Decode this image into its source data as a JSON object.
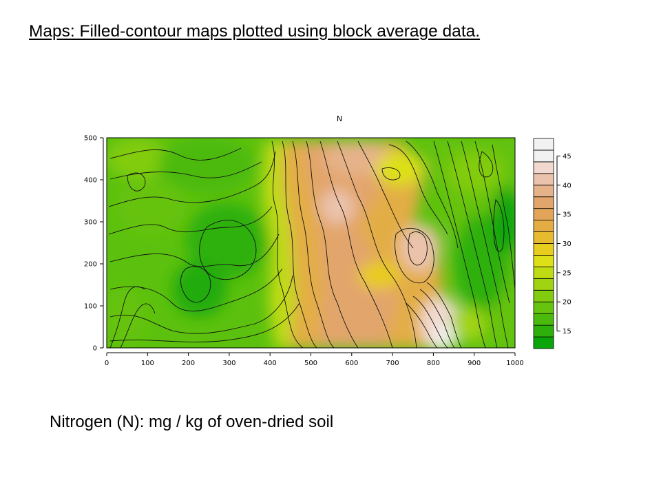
{
  "slide_title": "Maps: Filled-contour maps plotted using block average data.",
  "plot_title": "N",
  "caption": "Nitrogen (N): mg / kg of oven-dried soil",
  "chart_data": {
    "type": "heatmap",
    "title": "N",
    "x_ticks": [
      0,
      100,
      200,
      300,
      400,
      500,
      600,
      700,
      800,
      900,
      1000
    ],
    "y_ticks": [
      0,
      100,
      200,
      300,
      400,
      500
    ],
    "xlim": [
      0,
      1000
    ],
    "ylim": [
      0,
      500
    ],
    "colorbar": {
      "levels": [
        12,
        14,
        16,
        18,
        20,
        22,
        24,
        26,
        28,
        30,
        32,
        34,
        36,
        38,
        40,
        42,
        44,
        46,
        48
      ],
      "tick_labels": [
        15,
        20,
        25,
        30,
        35,
        40,
        45
      ],
      "colors": [
        "#0aa50a",
        "#2eb00c",
        "#4bba0c",
        "#66c30e",
        "#82cc10",
        "#a0d412",
        "#bfdb14",
        "#dde016",
        "#e8cc1e",
        "#e6bb30",
        "#e3ad44",
        "#e2a458",
        "#e2a56c",
        "#e6b28a",
        "#ebc3ac",
        "#f1d9cf",
        "#f2f2f2",
        "#f2f2f2"
      ]
    },
    "field_features": [
      {
        "description": "low-N basin (green)",
        "x": 300,
        "y": 180,
        "value": 17
      },
      {
        "description": "broad high-N ridge (tan)",
        "x": 580,
        "y": 330,
        "value": 40
      },
      {
        "description": "peak near bottom",
        "x": 840,
        "y": 40,
        "value": 48
      },
      {
        "description": "secondary high",
        "x": 790,
        "y": 290,
        "value": 45
      }
    ]
  }
}
